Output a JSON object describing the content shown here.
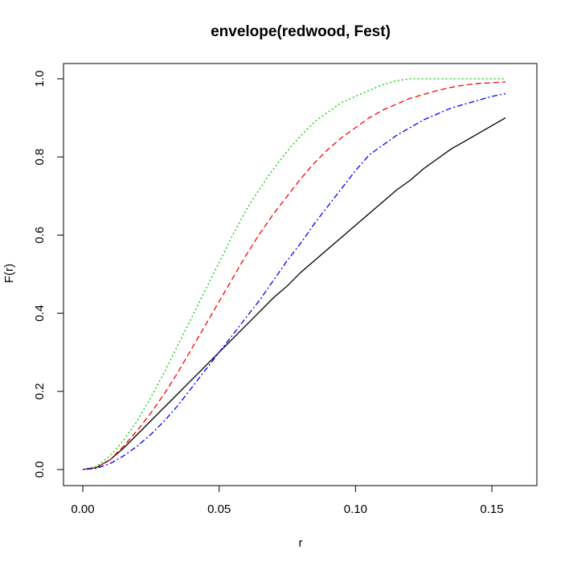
{
  "chart_data": {
    "type": "line",
    "title": "envelope(redwood, Fest)",
    "xlabel": "r",
    "ylabel": "F(r)",
    "xlim": [
      0,
      0.155
    ],
    "ylim": [
      0,
      1
    ],
    "xticks": [
      "0.00",
      "0.05",
      "0.10",
      "0.15"
    ],
    "yticks": [
      "0.0",
      "0.2",
      "0.4",
      "0.6",
      "0.8",
      "1.0"
    ],
    "grid": false,
    "series": [
      {
        "color": "#000000",
        "dash": "solid",
        "x": [
          0,
          0.005,
          0.01,
          0.015,
          0.02,
          0.025,
          0.03,
          0.035,
          0.04,
          0.045,
          0.05,
          0.055,
          0.06,
          0.065,
          0.07,
          0.075,
          0.08,
          0.085,
          0.09,
          0.095,
          0.1,
          0.105,
          0.11,
          0.115,
          0.12,
          0.125,
          0.13,
          0.135,
          0.14,
          0.145,
          0.15,
          0.155
        ],
        "y": [
          0,
          0.005,
          0.025,
          0.055,
          0.09,
          0.125,
          0.16,
          0.195,
          0.23,
          0.265,
          0.3,
          0.335,
          0.37,
          0.405,
          0.44,
          0.47,
          0.505,
          0.535,
          0.565,
          0.595,
          0.625,
          0.655,
          0.685,
          0.715,
          0.74,
          0.77,
          0.795,
          0.82,
          0.84,
          0.86,
          0.88,
          0.9
        ]
      },
      {
        "color": "#ff0000",
        "dash": "dashed",
        "x": [
          0,
          0.005,
          0.01,
          0.015,
          0.02,
          0.025,
          0.03,
          0.035,
          0.04,
          0.045,
          0.05,
          0.055,
          0.06,
          0.065,
          0.07,
          0.075,
          0.08,
          0.085,
          0.09,
          0.095,
          0.1,
          0.105,
          0.11,
          0.115,
          0.12,
          0.125,
          0.13,
          0.135,
          0.14,
          0.145,
          0.15,
          0.155
        ],
        "y": [
          0,
          0.005,
          0.025,
          0.06,
          0.1,
          0.145,
          0.195,
          0.25,
          0.31,
          0.37,
          0.43,
          0.49,
          0.55,
          0.605,
          0.655,
          0.7,
          0.745,
          0.785,
          0.82,
          0.85,
          0.875,
          0.9,
          0.92,
          0.935,
          0.95,
          0.96,
          0.97,
          0.978,
          0.984,
          0.988,
          0.99,
          0.992
        ]
      },
      {
        "color": "#00cc00",
        "dash": "dotted",
        "x": [
          0,
          0.005,
          0.01,
          0.015,
          0.02,
          0.025,
          0.03,
          0.035,
          0.04,
          0.045,
          0.05,
          0.055,
          0.06,
          0.065,
          0.07,
          0.075,
          0.08,
          0.085,
          0.09,
          0.095,
          0.1,
          0.105,
          0.11,
          0.115,
          0.12,
          0.125,
          0.13,
          0.135,
          0.14,
          0.145,
          0.15,
          0.155
        ],
        "y": [
          0,
          0.008,
          0.035,
          0.075,
          0.125,
          0.185,
          0.25,
          0.32,
          0.39,
          0.46,
          0.53,
          0.6,
          0.665,
          0.72,
          0.77,
          0.815,
          0.855,
          0.89,
          0.915,
          0.94,
          0.955,
          0.97,
          0.985,
          0.995,
          1.0,
          1.0,
          1.0,
          1.0,
          1.0,
          1.0,
          1.0,
          1.0
        ]
      },
      {
        "color": "#0000ff",
        "dash": "dotdash",
        "x": [
          0,
          0.005,
          0.01,
          0.015,
          0.02,
          0.025,
          0.03,
          0.035,
          0.04,
          0.045,
          0.05,
          0.055,
          0.06,
          0.065,
          0.07,
          0.075,
          0.08,
          0.085,
          0.09,
          0.095,
          0.1,
          0.105,
          0.11,
          0.115,
          0.12,
          0.125,
          0.13,
          0.135,
          0.14,
          0.145,
          0.15,
          0.155
        ],
        "y": [
          0,
          0.003,
          0.015,
          0.035,
          0.06,
          0.09,
          0.125,
          0.165,
          0.21,
          0.255,
          0.3,
          0.345,
          0.39,
          0.435,
          0.485,
          0.535,
          0.58,
          0.63,
          0.675,
          0.72,
          0.765,
          0.805,
          0.83,
          0.855,
          0.875,
          0.895,
          0.91,
          0.925,
          0.935,
          0.945,
          0.955,
          0.962
        ]
      }
    ]
  }
}
